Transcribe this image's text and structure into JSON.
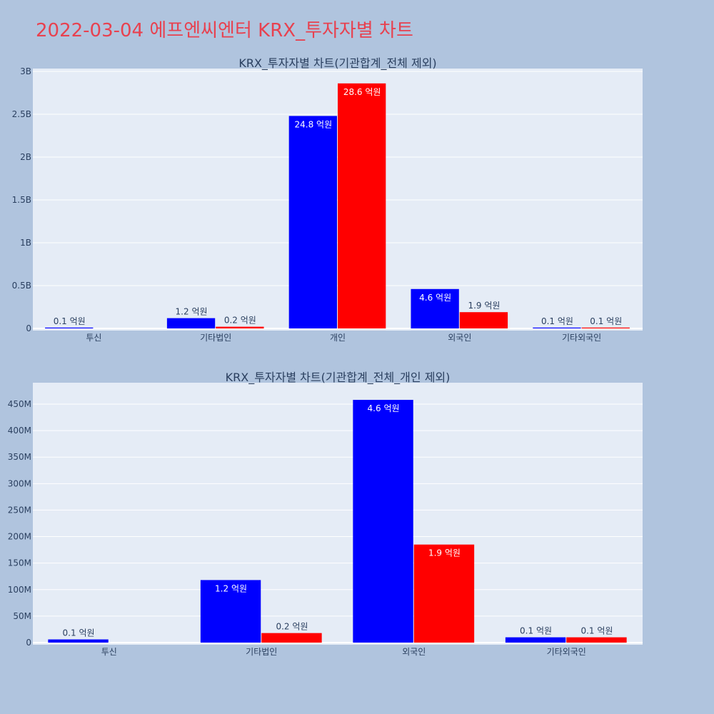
{
  "page": {
    "title": "2022-03-04 에프엔씨엔터 KRX_투자자별 차트",
    "background": "#b0c4de",
    "title_color": "#e8414f",
    "plot_background": "#e5ecf6"
  },
  "chart_data": [
    {
      "type": "bar",
      "title": "KRX_투자자별 차트(기관합계_전체 제외)",
      "categories": [
        "투신",
        "기타법인",
        "개인",
        "외국인",
        "기타외국인"
      ],
      "series": [
        {
          "color": "#0000ff",
          "values": [
            10000000,
            120000000,
            2480000000,
            460000000,
            10000000
          ],
          "labels": [
            "0.1 억원",
            "1.2 억원",
            "24.8 억원",
            "4.6 억원",
            "0.1 억원"
          ]
        },
        {
          "color": "#ff0000",
          "values": [
            null,
            20000000,
            2860000000,
            190000000,
            10000000
          ],
          "labels": [
            "",
            "0.2 억원",
            "28.6 억원",
            "1.9 억원",
            "0.1 억원"
          ]
        }
      ],
      "ylim": [
        0,
        3000000000
      ],
      "yticks": [
        0,
        500000000,
        1000000000,
        1500000000,
        2000000000,
        2500000000,
        3000000000
      ],
      "ytick_labels": [
        "0",
        "0.5B",
        "1B",
        "1.5B",
        "2B",
        "2.5B",
        "3B"
      ],
      "grid": true
    },
    {
      "type": "bar",
      "title": "KRX_투자자별 차트(기관합계_전체_개인 제외)",
      "categories": [
        "투신",
        "기타법인",
        "외국인",
        "기타외국인"
      ],
      "series": [
        {
          "color": "#0000ff",
          "values": [
            6000000,
            118000000,
            458000000,
            10000000
          ],
          "labels": [
            "0.1 억원",
            "1.2 억원",
            "4.6 억원",
            "0.1 억원"
          ]
        },
        {
          "color": "#ff0000",
          "values": [
            null,
            18000000,
            185000000,
            10000000
          ],
          "labels": [
            "",
            "0.2 억원",
            "1.9 억원",
            "0.1 억원"
          ]
        }
      ],
      "ylim": [
        0,
        485000000
      ],
      "yticks": [
        0,
        50000000,
        100000000,
        150000000,
        200000000,
        250000000,
        300000000,
        350000000,
        400000000,
        450000000
      ],
      "ytick_labels": [
        "0",
        "50M",
        "100M",
        "150M",
        "200M",
        "250M",
        "300M",
        "350M",
        "400M",
        "450M"
      ],
      "grid": true
    }
  ]
}
